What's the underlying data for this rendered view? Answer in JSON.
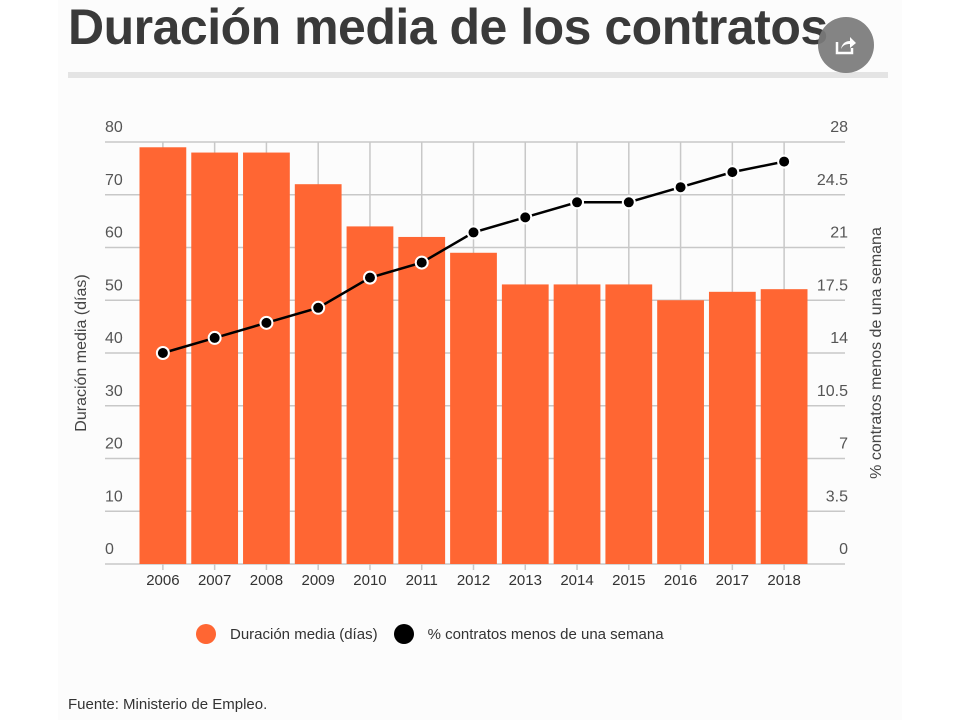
{
  "title": "Duración media de los contratos",
  "source": "Fuente: Ministerio de Empleo.",
  "share_icon": "share-icon",
  "colors": {
    "bars": "#ff6633",
    "line": "#000000",
    "grid": "#c8c8c8",
    "text": "#555555"
  },
  "chart_data": {
    "type": "bar+line",
    "categories": [
      "2006",
      "2007",
      "2008",
      "2009",
      "2010",
      "2011",
      "2012",
      "2013",
      "2014",
      "2015",
      "2016",
      "2017",
      "2018"
    ],
    "series": [
      {
        "name": "Duración media (días)",
        "type": "bar",
        "axis": "left",
        "values": [
          79,
          78,
          78,
          72,
          64,
          62,
          59,
          53,
          53,
          53,
          50,
          51.6,
          52.1
        ]
      },
      {
        "name": "% contratos menos de una semana",
        "type": "line",
        "axis": "right",
        "values": [
          14.0,
          15.0,
          16.0,
          17.0,
          19.0,
          20.0,
          22.0,
          23.0,
          24.0,
          24.0,
          25.0,
          26.0,
          26.7
        ]
      }
    ],
    "ylabel": "Duración media (días)",
    "ylabel_right": "% contratos menos de una semana",
    "ylim": [
      0,
      80
    ],
    "ylim_right": [
      0,
      28
    ],
    "yticks": [
      "0",
      "10",
      "20",
      "30",
      "40",
      "50",
      "60",
      "70",
      "80"
    ],
    "yticks_right": [
      "0",
      "3.5",
      "7",
      "10.5",
      "14",
      "17.5",
      "21",
      "24.5",
      "28"
    ],
    "grid": true,
    "legend": "bottom"
  }
}
